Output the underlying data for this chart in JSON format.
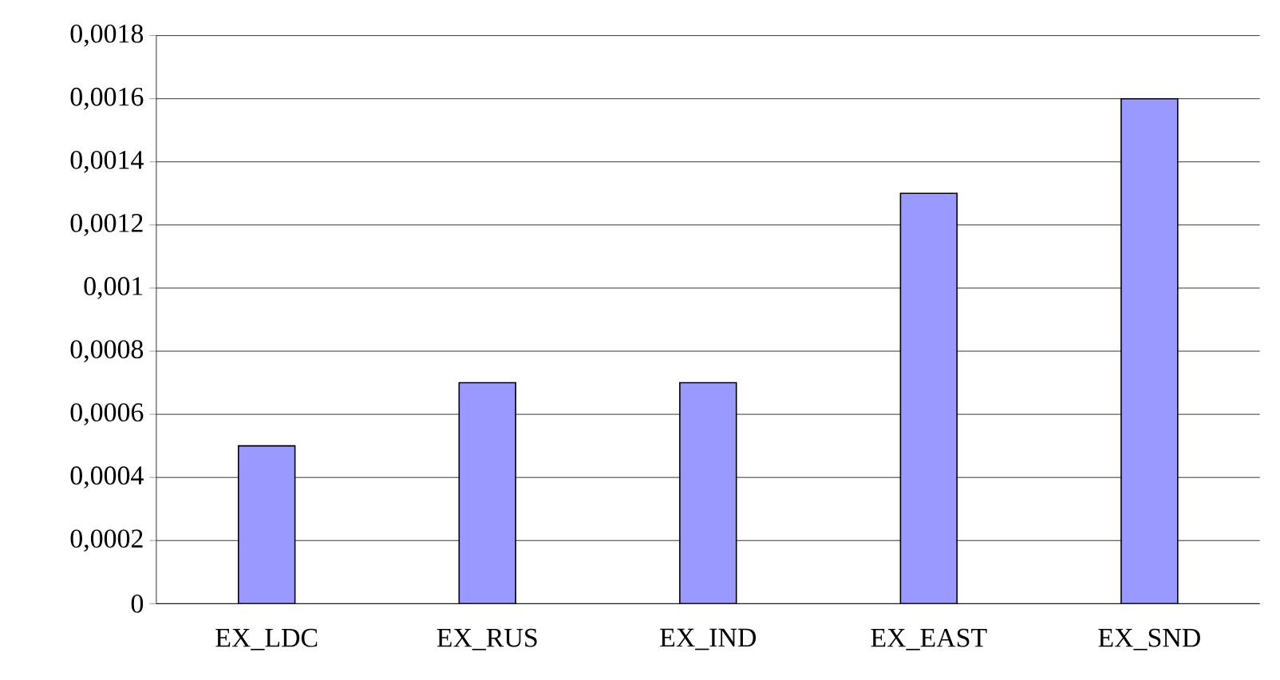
{
  "chart_data": {
    "type": "bar",
    "categories": [
      "EX_LDC",
      "EX_RUS",
      "EX_IND",
      "EX_EAST",
      "EX_SND"
    ],
    "values": [
      0.0005,
      0.0007,
      0.0007,
      0.0013,
      0.0016
    ],
    "color": "#9999ff",
    "ylim": [
      0,
      0.0018
    ],
    "yticks": [
      0,
      {
        "value": 0.0002,
        "label": "0,0002"
      },
      {
        "value": 0.0004,
        "label": "0,0004"
      },
      {
        "value": 0.0006,
        "label": "0,0006"
      },
      {
        "value": 0.0008,
        "label": "0,0008"
      },
      {
        "value": 0.001,
        "label": "0,001"
      },
      {
        "value": 0.0012,
        "label": "0,0012"
      },
      {
        "value": 0.0014,
        "label": "0,0014"
      },
      {
        "value": 0.0016,
        "label": "0,0016"
      },
      {
        "value": 0.0018,
        "label": "0,0018"
      }
    ],
    "grid": "y"
  }
}
